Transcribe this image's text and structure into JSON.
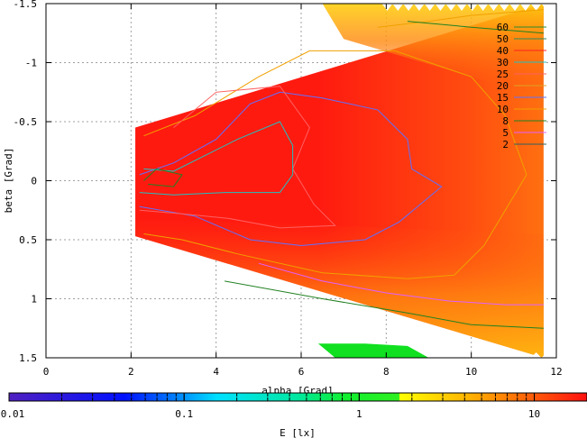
{
  "chart_data": {
    "type": "heatmap",
    "title": "",
    "xlabel": "alpha [Grad]",
    "ylabel": "beta [Grad]",
    "colorbar_label": "E [lx]",
    "xlim": [
      0,
      12
    ],
    "ylim": [
      1.5,
      -1.5
    ],
    "y_inverted": true,
    "grid": true,
    "x_ticks": [
      "0",
      "2",
      "4",
      "6",
      "8",
      "10",
      "12"
    ],
    "y_ticks": [
      "-1.5",
      "-1",
      "-0.5",
      "0",
      "0.5",
      "1",
      "1.5"
    ],
    "colorbar_scale": "log",
    "colorbar_range": [
      0.01,
      20
    ],
    "colorbar_ticks": [
      "0.01",
      "0.1",
      "1",
      "10"
    ],
    "legend_position": "top-right",
    "contour_levels": [
      {
        "label": "60",
        "color": "#2e8b2e"
      },
      {
        "label": "50",
        "color": "#2e8b57"
      },
      {
        "label": "40",
        "color": "#ff2020"
      },
      {
        "label": "30",
        "color": "#20c0c0"
      },
      {
        "label": "25",
        "color": "#ff6060"
      },
      {
        "label": "20",
        "color": "#e0a020"
      },
      {
        "label": "15",
        "color": "#6070ff"
      },
      {
        "label": "10",
        "color": "#f0a000"
      },
      {
        "label": "8",
        "color": "#208020"
      },
      {
        "label": "5",
        "color": "#e060ff"
      },
      {
        "label": "2",
        "color": "#306060"
      }
    ],
    "region": {
      "x_min": 2.1,
      "x_max": 11.7,
      "y_range_at_x_min": [
        -0.45,
        0.47
      ],
      "y_range_at_x_max": [
        -1.5,
        1.5
      ]
    },
    "contours": [
      {
        "level": "15",
        "points": [
          [
            2.2,
            -0.05
          ],
          [
            3,
            -0.15
          ],
          [
            4,
            -0.35
          ],
          [
            4.8,
            -0.65
          ],
          [
            5.5,
            -0.75
          ],
          [
            6.5,
            -0.7
          ],
          [
            7.8,
            -0.6
          ],
          [
            8.5,
            -0.35
          ],
          [
            8.6,
            -0.1
          ],
          [
            9.3,
            0.05
          ],
          [
            8.8,
            0.2
          ],
          [
            8.3,
            0.35
          ],
          [
            7.5,
            0.5
          ],
          [
            6,
            0.55
          ],
          [
            4.8,
            0.5
          ],
          [
            3.5,
            0.3
          ],
          [
            2.2,
            0.22
          ]
        ]
      },
      {
        "level": "10",
        "points": [
          [
            2.3,
            -0.38
          ],
          [
            3.5,
            -0.55
          ],
          [
            5,
            -0.88
          ],
          [
            6.2,
            -1.1
          ],
          [
            8.2,
            -1.1
          ],
          [
            10,
            -0.88
          ],
          [
            10.8,
            -0.55
          ],
          [
            11.3,
            -0.05
          ],
          [
            10.3,
            0.55
          ],
          [
            9.6,
            0.8
          ],
          [
            8.5,
            0.83
          ],
          [
            6.5,
            0.78
          ],
          [
            4.5,
            0.62
          ],
          [
            3.2,
            0.5
          ],
          [
            2.3,
            0.45
          ]
        ]
      },
      {
        "level": "5",
        "points": [
          [
            5,
            0.7
          ],
          [
            6.5,
            0.85
          ],
          [
            8,
            0.95
          ],
          [
            9.5,
            1.02
          ],
          [
            10.8,
            1.05
          ],
          [
            11.7,
            1.05
          ]
        ]
      },
      {
        "level": "8",
        "points": [
          [
            4.2,
            0.85
          ],
          [
            6.5,
            1.0
          ],
          [
            8.5,
            1.12
          ],
          [
            10,
            1.22
          ],
          [
            11.7,
            1.25
          ]
        ]
      },
      {
        "level": "25",
        "points": [
          [
            3,
            -0.45
          ],
          [
            4,
            -0.75
          ],
          [
            5.5,
            -0.8
          ],
          [
            6.2,
            -0.45
          ],
          [
            5.8,
            -0.1
          ],
          [
            6.3,
            0.2
          ],
          [
            6.8,
            0.38
          ],
          [
            5.5,
            0.4
          ],
          [
            4.3,
            0.32
          ],
          [
            3.2,
            0.28
          ],
          [
            2.2,
            0.25
          ]
        ]
      },
      {
        "level": "30",
        "points": [
          [
            2.3,
            -0.1
          ],
          [
            3,
            -0.08
          ],
          [
            4.5,
            -0.35
          ],
          [
            5.5,
            -0.5
          ],
          [
            5.8,
            -0.3
          ],
          [
            5.8,
            -0.05
          ],
          [
            5.5,
            0.1
          ],
          [
            4.2,
            0.1
          ],
          [
            3,
            0.12
          ],
          [
            2.2,
            0.1
          ]
        ]
      },
      {
        "level": "8b",
        "points": [
          [
            2.3,
            0
          ],
          [
            2.6,
            -0.1
          ],
          [
            3.2,
            -0.05
          ],
          [
            3,
            0.05
          ],
          [
            2.4,
            0.03
          ]
        ]
      },
      {
        "level": "10b",
        "points": [
          [
            7.8,
            -1.3
          ],
          [
            9,
            -1.35
          ],
          [
            10,
            -1.4
          ],
          [
            11.7,
            -1.45
          ]
        ]
      },
      {
        "level": "8c",
        "points": [
          [
            8.5,
            -1.35
          ],
          [
            10,
            -1.3
          ],
          [
            11.7,
            -1.25
          ]
        ]
      }
    ],
    "zones": [
      {
        "name": "green-low",
        "points": [
          [
            6.4,
            1.38
          ],
          [
            7.5,
            1.38
          ],
          [
            8.5,
            1.4
          ],
          [
            9,
            1.5
          ],
          [
            6.8,
            1.5
          ]
        ]
      }
    ]
  }
}
